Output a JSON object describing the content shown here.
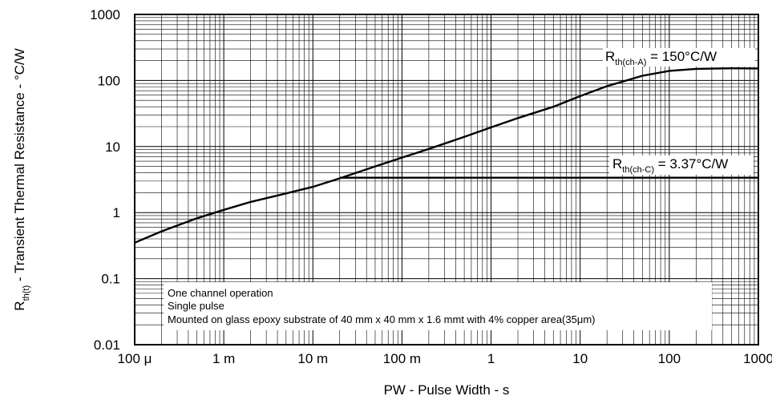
{
  "chart_data": {
    "type": "line",
    "title": "",
    "xlabel": "PW - Pulse Width - s",
    "ylabel": {
      "prefix": "R",
      "sub": "th(t)",
      "suffix": " - Transient Thermal Resistance - °C/W"
    },
    "x_scale": "log",
    "y_scale": "log",
    "xlim": [
      0.0001,
      1000
    ],
    "ylim": [
      0.01,
      1000
    ],
    "grid": true,
    "x_ticks": [
      {
        "value": 0.0001,
        "label": "100 μ"
      },
      {
        "value": 0.001,
        "label": "1 m"
      },
      {
        "value": 0.01,
        "label": "10 m"
      },
      {
        "value": 0.1,
        "label": "100 m"
      },
      {
        "value": 1,
        "label": "1"
      },
      {
        "value": 10,
        "label": "10"
      },
      {
        "value": 100,
        "label": "100"
      },
      {
        "value": 1000,
        "label": "1000"
      }
    ],
    "y_ticks": [
      {
        "value": 0.01,
        "label": "0.01"
      },
      {
        "value": 0.1,
        "label": "0.1"
      },
      {
        "value": 1,
        "label": "1"
      },
      {
        "value": 10,
        "label": "10"
      },
      {
        "value": 100,
        "label": "100"
      },
      {
        "value": 1000,
        "label": "1000"
      }
    ],
    "series": [
      {
        "x": [
          0.0001,
          0.0002,
          0.0005,
          0.001,
          0.002,
          0.005,
          0.01,
          0.02,
          0.05,
          0.1,
          0.2,
          0.5,
          1,
          2,
          5,
          10,
          20,
          50,
          100,
          200,
          500,
          1000
        ],
        "y": [
          0.35,
          0.52,
          0.82,
          1.1,
          1.45,
          1.95,
          2.45,
          3.3,
          5.0,
          6.8,
          9.2,
          14.0,
          19.5,
          27,
          40,
          58,
          82,
          118,
          140,
          150,
          153,
          152
        ]
      },
      {
        "x": [
          0.02,
          1000
        ],
        "y": [
          3.37,
          3.37
        ]
      }
    ],
    "annotations": [
      {
        "prefix": "R",
        "sub": "th(ch-A)",
        "suffix": " = 150°C/W"
      },
      {
        "prefix": "R",
        "sub": "th(ch-C)",
        "suffix": " = 3.37°C/W"
      }
    ],
    "notes": [
      "One channel operation",
      "Single pulse",
      "Mounted on glass epoxy substrate of 40 mm x 40 mm x 1.6 mmt with 4% copper area(35μm)"
    ]
  }
}
